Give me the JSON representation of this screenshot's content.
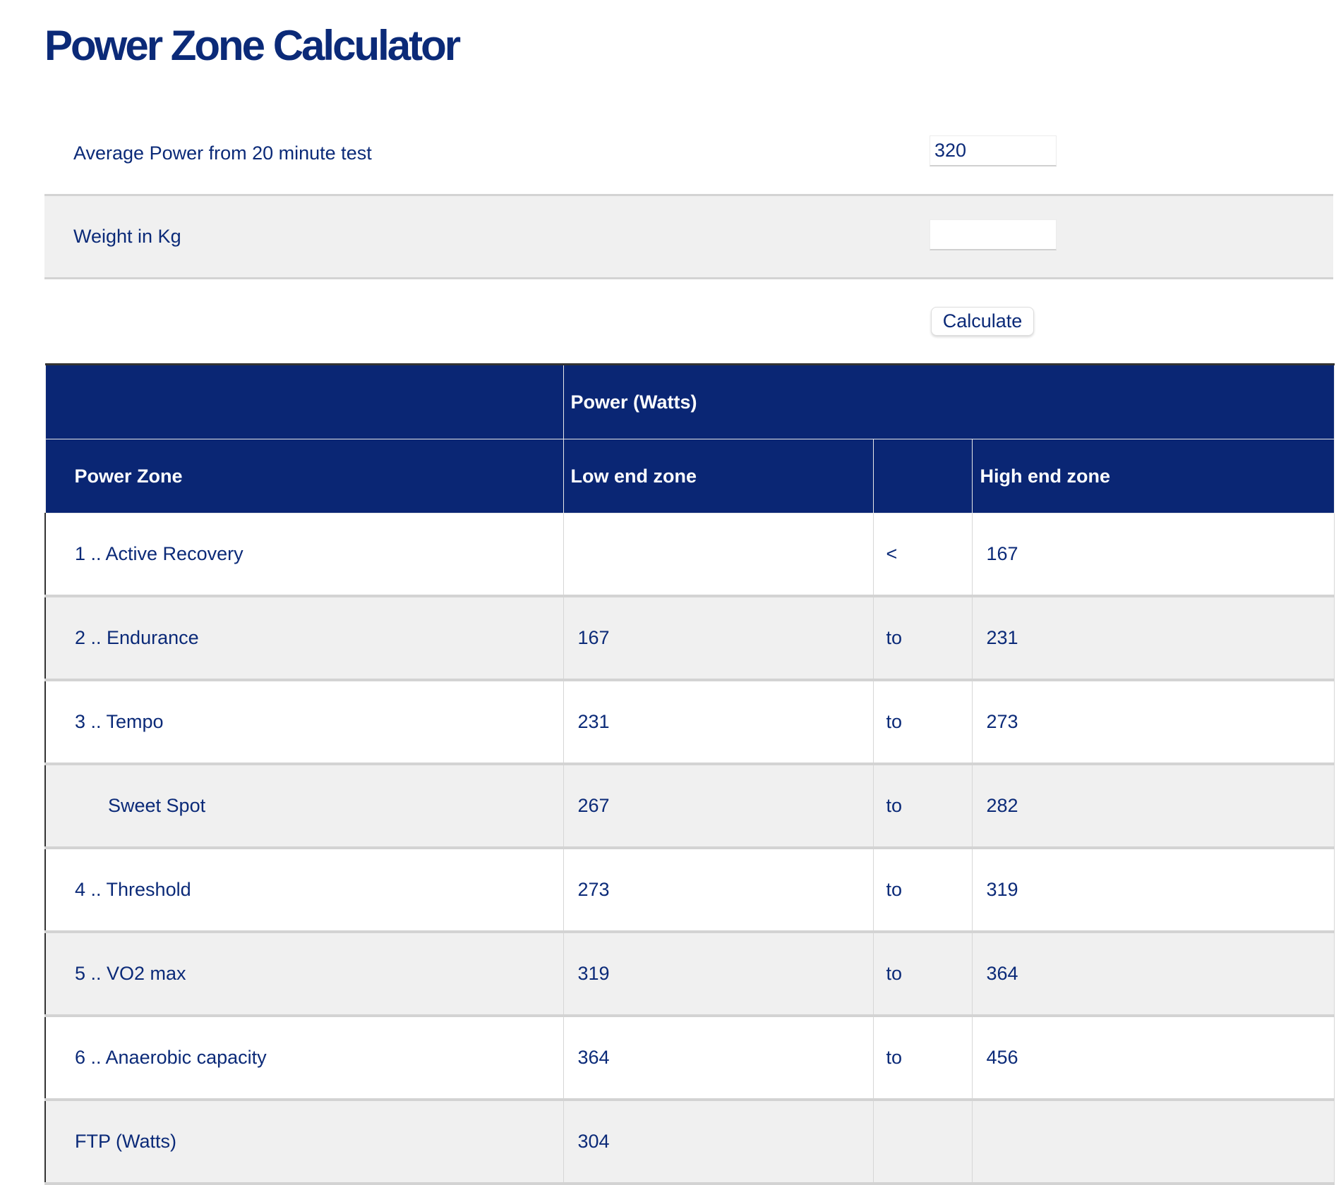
{
  "title": "Power Zone Calculator",
  "form": {
    "avg_power_label": "Average Power from 20 minute test",
    "avg_power_value": "320",
    "weight_label": "Weight in Kg",
    "weight_value": "",
    "calculate_label": "Calculate"
  },
  "table": {
    "group_header": "Power (Watts)",
    "headers": [
      "Power Zone",
      "Low end zone",
      "",
      "High end zone"
    ],
    "rows": [
      {
        "zone": "1 .. Active Recovery",
        "low": "",
        "sep": "<",
        "high": "167"
      },
      {
        "zone": "2 .. Endurance",
        "low": "167",
        "sep": "to",
        "high": "231"
      },
      {
        "zone": "3 .. Tempo",
        "low": "231",
        "sep": "to",
        "high": "273"
      },
      {
        "zone": "Sweet Spot",
        "low": "267",
        "sep": "to",
        "high": "282"
      },
      {
        "zone": "4 .. Threshold",
        "low": "273",
        "sep": "to",
        "high": "319"
      },
      {
        "zone": "5 .. VO2 max",
        "low": "319",
        "sep": "to",
        "high": "364"
      },
      {
        "zone": "6 .. Anaerobic capacity",
        "low": "364",
        "sep": "to",
        "high": "456"
      },
      {
        "zone": "FTP (Watts)",
        "low": "304",
        "sep": "",
        "high": ""
      }
    ]
  },
  "colors": {
    "brand": "#0a2674",
    "row_alt": "#f0f0f0"
  }
}
